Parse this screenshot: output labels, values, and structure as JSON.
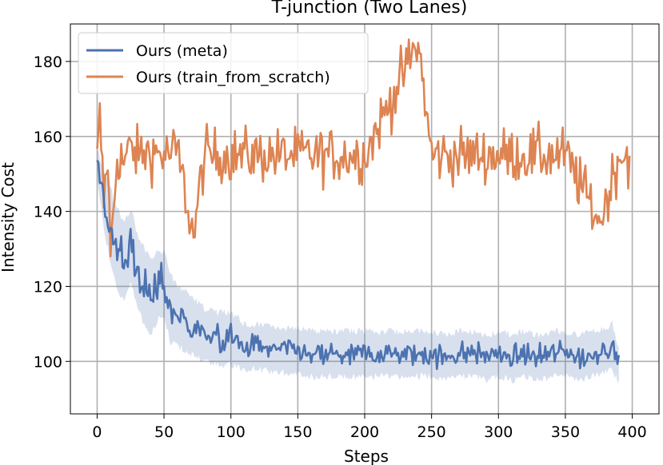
{
  "chart_data": {
    "type": "line",
    "title": "T-junction (Two Lanes)",
    "xlabel": "Steps",
    "ylabel": "Intensity Cost",
    "xlim": [
      -20,
      420
    ],
    "ylim": [
      86,
      190
    ],
    "xticks": [
      0,
      50,
      100,
      150,
      200,
      250,
      300,
      350,
      400
    ],
    "yticks": [
      100,
      120,
      140,
      160,
      180
    ],
    "grid": true,
    "legend_position": "top-left",
    "series": [
      {
        "name": "Ours (meta)",
        "color": "#4c72b0",
        "has_confidence_band": true,
        "x": [
          0,
          5,
          10,
          15,
          20,
          25,
          30,
          35,
          40,
          45,
          50,
          55,
          60,
          70,
          80,
          90,
          100,
          110,
          120,
          130,
          140,
          150,
          160,
          170,
          180,
          190,
          200,
          210,
          220,
          230,
          240,
          250,
          260,
          270,
          280,
          290,
          300,
          310,
          320,
          330,
          340,
          350,
          360,
          370,
          380,
          385,
          390
        ],
        "y": [
          153,
          143,
          136,
          130,
          127,
          131,
          124,
          120,
          117,
          120,
          121,
          114,
          112,
          110,
          107,
          106,
          106,
          104,
          104,
          103,
          103,
          103,
          102,
          102,
          102,
          102,
          102,
          102,
          102,
          102,
          102,
          102,
          101,
          102,
          102,
          101,
          102,
          101,
          102,
          101,
          102,
          102,
          101,
          102,
          103,
          104,
          99
        ],
        "band_halfwidth": [
          3,
          6,
          9,
          10,
          9,
          9,
          9,
          9,
          9,
          8,
          8,
          8,
          7,
          7,
          6,
          6,
          6,
          5,
          5,
          5,
          5,
          5,
          5,
          5,
          5,
          5,
          5,
          5,
          5,
          5,
          5,
          5,
          5,
          5,
          5,
          5,
          5,
          5,
          5,
          5,
          5,
          5,
          5,
          5,
          5,
          5,
          4
        ]
      },
      {
        "name": "Ours (train_from_scratch)",
        "color": "#dd8452",
        "x": [
          0,
          2,
          5,
          8,
          10,
          15,
          20,
          25,
          30,
          40,
          50,
          60,
          72,
          80,
          100,
          150,
          200,
          240,
          250,
          300,
          350,
          376,
          390,
          398
        ],
        "y": [
          153,
          165,
          143,
          155,
          128,
          155,
          153,
          157,
          155,
          156,
          155,
          156,
          133,
          155,
          155,
          155,
          155,
          185,
          155,
          155,
          155,
          137,
          155,
          155
        ],
        "noise_amplitude": 7
      }
    ]
  }
}
